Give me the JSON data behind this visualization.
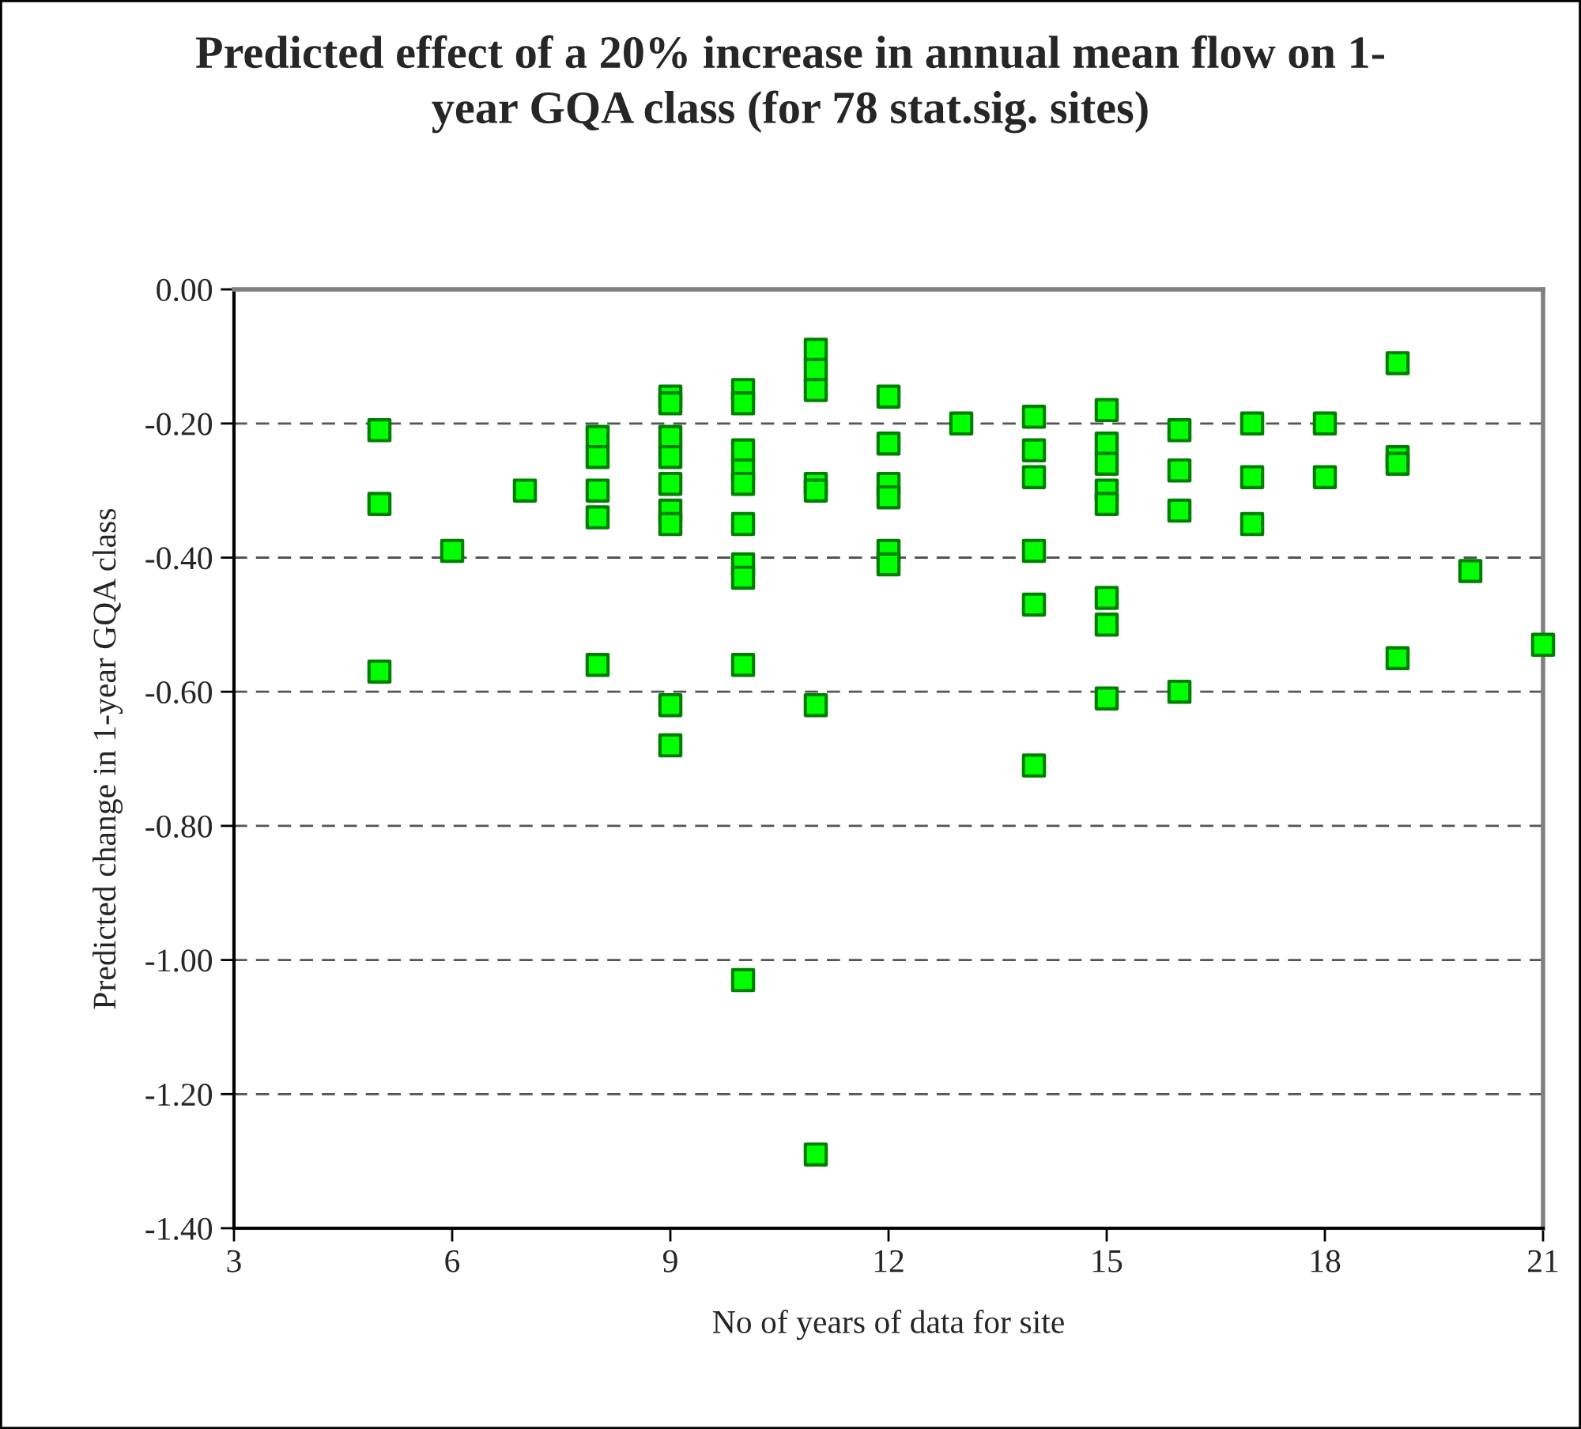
{
  "chart_data": {
    "type": "scatter",
    "title": "Predicted effect of a 20% increase in annual mean flow on 1-\nyear GQA class (for 78 stat.sig. sites)",
    "xlabel": "No of years of data for site",
    "ylabel": "Predicted change in 1-year GQA class",
    "series": [
      {
        "color": "#00ff00",
        "x": [
          5,
          5,
          5,
          6,
          7,
          8,
          8,
          8,
          8,
          8,
          9,
          9,
          9,
          9,
          9,
          9,
          9,
          9,
          9,
          10,
          10,
          10,
          10,
          10,
          10,
          10,
          10,
          10,
          10,
          11,
          11,
          11,
          11,
          11,
          11,
          11,
          12,
          12,
          12,
          12,
          12,
          12,
          13,
          14,
          14,
          14,
          14,
          14,
          14,
          15,
          15,
          15,
          15,
          15,
          15,
          15,
          15,
          16,
          16,
          16,
          16,
          17,
          17,
          17,
          18,
          18,
          19,
          19,
          19,
          19,
          20,
          21
        ],
        "values": [
          -0.21,
          -0.32,
          -0.57,
          -0.39,
          -0.3,
          -0.22,
          -0.25,
          -0.3,
          -0.34,
          -0.56,
          -0.16,
          -0.17,
          -0.22,
          -0.25,
          -0.29,
          -0.33,
          -0.35,
          -0.62,
          -0.68,
          -0.15,
          -0.17,
          -0.24,
          -0.27,
          -0.29,
          -0.35,
          -0.41,
          -0.43,
          -0.56,
          -1.03,
          -0.09,
          -0.12,
          -0.15,
          -0.29,
          -0.3,
          -0.62,
          -1.29,
          -0.16,
          -0.23,
          -0.29,
          -0.31,
          -0.39,
          -0.41,
          -0.2,
          -0.19,
          -0.24,
          -0.28,
          -0.39,
          -0.47,
          -0.71,
          -0.18,
          -0.23,
          -0.26,
          -0.3,
          -0.32,
          -0.46,
          -0.5,
          -0.61,
          -0.21,
          -0.27,
          -0.33,
          -0.6,
          -0.2,
          -0.28,
          -0.35,
          -0.2,
          -0.28,
          -0.11,
          -0.25,
          -0.26,
          -0.55,
          -0.42,
          -0.53
        ]
      }
    ],
    "xlim": [
      3,
      21
    ],
    "xticks": [
      3,
      6,
      9,
      12,
      15,
      18,
      21
    ],
    "ylim": [
      -1.4,
      0
    ],
    "yticks": [
      {
        "value": -1.4,
        "label": "-1.40"
      },
      {
        "value": -1.2,
        "label": "-1.20"
      },
      {
        "value": -1.0,
        "label": "-1.00"
      },
      {
        "value": -0.8,
        "label": "-0.80"
      },
      {
        "value": -0.6,
        "label": "-0.60"
      },
      {
        "value": -0.4,
        "label": "-0.40"
      },
      {
        "value": -0.2,
        "label": "-0.20"
      },
      {
        "value": 0,
        "label": "0.00"
      }
    ],
    "grid": "y",
    "marker": "square",
    "legend": false
  }
}
